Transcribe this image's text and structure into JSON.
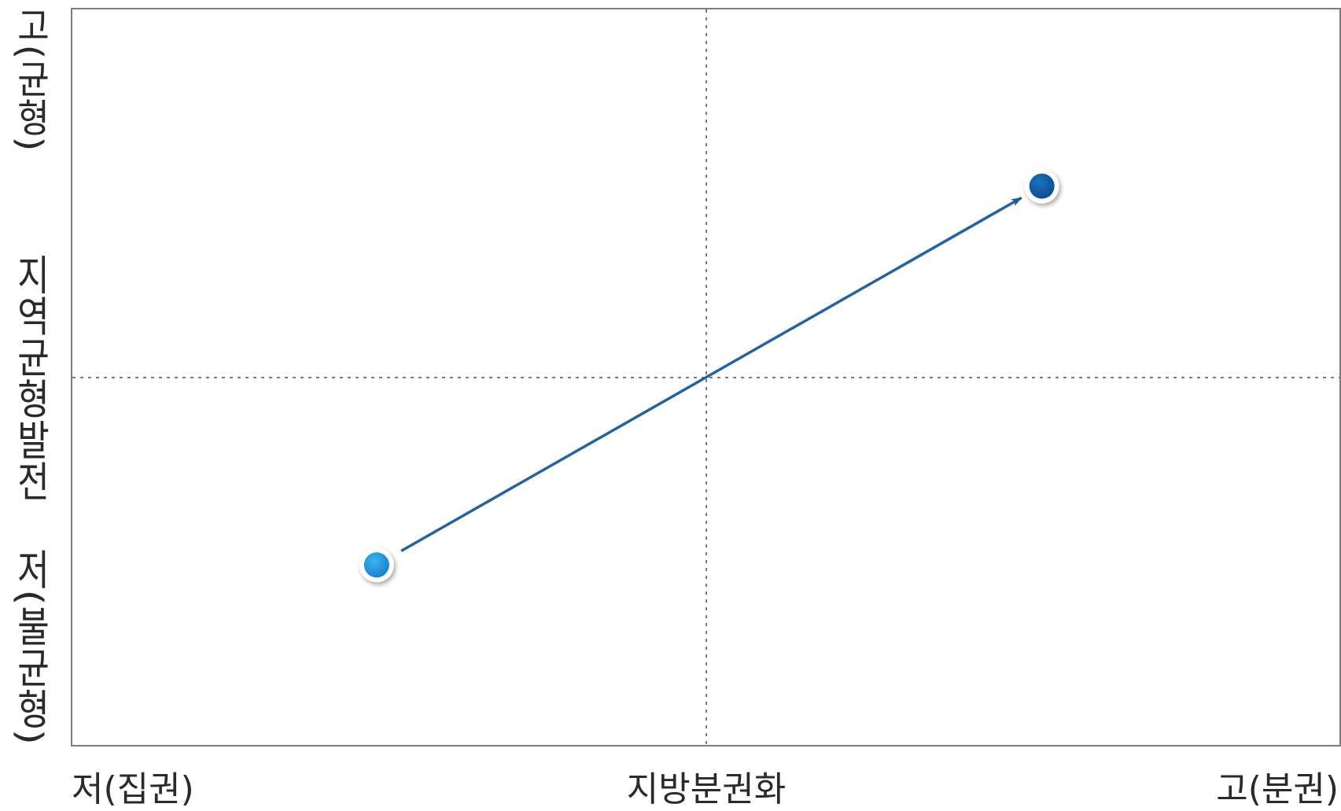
{
  "x_axis": {
    "title": "지방분권화",
    "low_label": "저(집권)",
    "high_label": "고(분권)"
  },
  "y_axis": {
    "title": "지역균형발전",
    "high_label": "고(균형)",
    "low_label": "저(불균형)"
  },
  "points": [
    {
      "name": "start",
      "x": -0.52,
      "y": -0.51,
      "color": "#1e97dd"
    },
    {
      "name": "end",
      "x": 0.53,
      "y": 0.52,
      "color": "#0e5da8"
    }
  ],
  "arrow": {
    "from": "start",
    "to": "end",
    "color": "#2363a3"
  },
  "colors": {
    "frame": "#7d7d7d",
    "guides": "#7a7a7a",
    "text": "#2a2a2a"
  }
}
